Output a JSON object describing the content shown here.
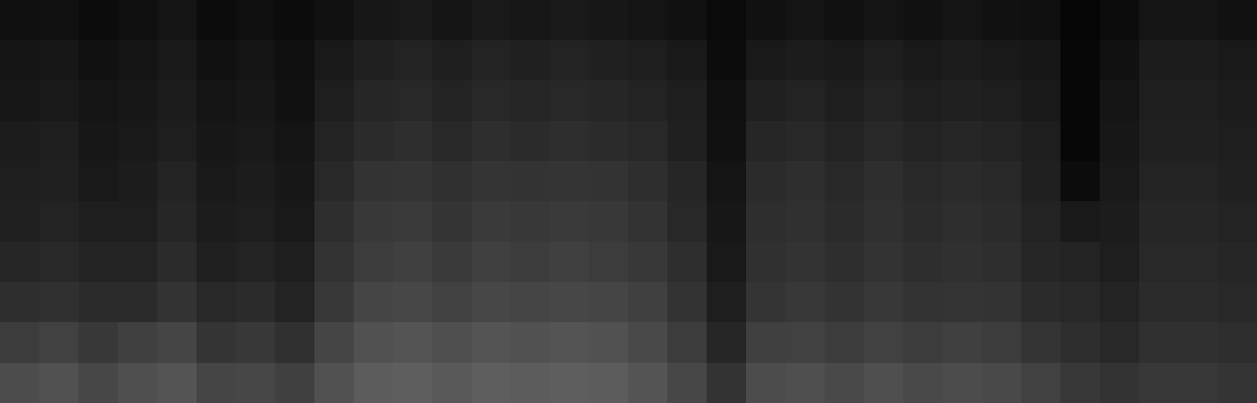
{
  "chart_data": {
    "type": "heatmap",
    "tick_labels": false,
    "color": "gray",
    "zlim": [
      0,
      1
    ],
    "cells": [
      [
        0.06,
        0.07,
        0.05,
        0.06,
        0.08,
        0.05,
        0.06,
        0.05,
        0.07,
        0.09,
        0.1,
        0.08,
        0.1,
        0.09,
        0.1,
        0.09,
        0.08,
        0.07,
        0.04,
        0.07,
        0.08,
        0.07,
        0.08,
        0.07,
        0.08,
        0.07,
        0.06,
        0.02,
        0.05,
        0.08,
        0.08,
        0.07
      ],
      [
        0.08,
        0.09,
        0.07,
        0.08,
        0.1,
        0.07,
        0.08,
        0.06,
        0.1,
        0.13,
        0.14,
        0.12,
        0.14,
        0.13,
        0.14,
        0.13,
        0.12,
        0.1,
        0.05,
        0.1,
        0.11,
        0.1,
        0.12,
        0.1,
        0.11,
        0.1,
        0.09,
        0.03,
        0.07,
        0.11,
        0.11,
        0.1
      ],
      [
        0.09,
        0.1,
        0.08,
        0.09,
        0.11,
        0.08,
        0.09,
        0.07,
        0.12,
        0.15,
        0.16,
        0.14,
        0.16,
        0.15,
        0.16,
        0.15,
        0.14,
        0.12,
        0.06,
        0.13,
        0.14,
        0.12,
        0.14,
        0.12,
        0.13,
        0.12,
        0.1,
        0.03,
        0.08,
        0.12,
        0.12,
        0.11
      ],
      [
        0.11,
        0.12,
        0.09,
        0.1,
        0.12,
        0.09,
        0.1,
        0.08,
        0.14,
        0.17,
        0.18,
        0.16,
        0.18,
        0.17,
        0.18,
        0.17,
        0.16,
        0.13,
        0.07,
        0.15,
        0.16,
        0.14,
        0.16,
        0.14,
        0.15,
        0.14,
        0.12,
        0.03,
        0.09,
        0.13,
        0.13,
        0.12
      ],
      [
        0.12,
        0.13,
        0.1,
        0.11,
        0.14,
        0.1,
        0.11,
        0.09,
        0.16,
        0.2,
        0.21,
        0.19,
        0.21,
        0.2,
        0.21,
        0.2,
        0.18,
        0.15,
        0.08,
        0.17,
        0.18,
        0.16,
        0.18,
        0.16,
        0.17,
        0.16,
        0.13,
        0.05,
        0.1,
        0.14,
        0.14,
        0.13
      ],
      [
        0.13,
        0.14,
        0.12,
        0.12,
        0.15,
        0.11,
        0.12,
        0.1,
        0.18,
        0.22,
        0.23,
        0.21,
        0.23,
        0.22,
        0.23,
        0.22,
        0.2,
        0.16,
        0.09,
        0.18,
        0.19,
        0.17,
        0.19,
        0.17,
        0.18,
        0.17,
        0.14,
        0.1,
        0.11,
        0.15,
        0.15,
        0.14
      ],
      [
        0.15,
        0.16,
        0.14,
        0.14,
        0.17,
        0.13,
        0.14,
        0.12,
        0.2,
        0.24,
        0.25,
        0.23,
        0.25,
        0.24,
        0.25,
        0.24,
        0.22,
        0.18,
        0.1,
        0.19,
        0.2,
        0.18,
        0.2,
        0.18,
        0.19,
        0.18,
        0.15,
        0.14,
        0.12,
        0.16,
        0.16,
        0.15
      ],
      [
        0.18,
        0.19,
        0.17,
        0.17,
        0.2,
        0.16,
        0.17,
        0.14,
        0.22,
        0.27,
        0.28,
        0.26,
        0.28,
        0.27,
        0.28,
        0.27,
        0.25,
        0.2,
        0.12,
        0.21,
        0.22,
        0.2,
        0.22,
        0.2,
        0.21,
        0.2,
        0.17,
        0.16,
        0.14,
        0.17,
        0.17,
        0.16
      ],
      [
        0.24,
        0.26,
        0.22,
        0.25,
        0.27,
        0.21,
        0.22,
        0.19,
        0.27,
        0.32,
        0.33,
        0.31,
        0.33,
        0.32,
        0.33,
        0.32,
        0.29,
        0.24,
        0.15,
        0.25,
        0.26,
        0.24,
        0.26,
        0.24,
        0.25,
        0.24,
        0.21,
        0.18,
        0.16,
        0.19,
        0.19,
        0.18
      ],
      [
        0.3,
        0.32,
        0.28,
        0.31,
        0.33,
        0.27,
        0.28,
        0.25,
        0.32,
        0.36,
        0.37,
        0.35,
        0.37,
        0.36,
        0.37,
        0.36,
        0.33,
        0.28,
        0.2,
        0.3,
        0.31,
        0.29,
        0.31,
        0.29,
        0.3,
        0.29,
        0.26,
        0.22,
        0.2,
        0.22,
        0.22,
        0.21
      ]
    ]
  }
}
